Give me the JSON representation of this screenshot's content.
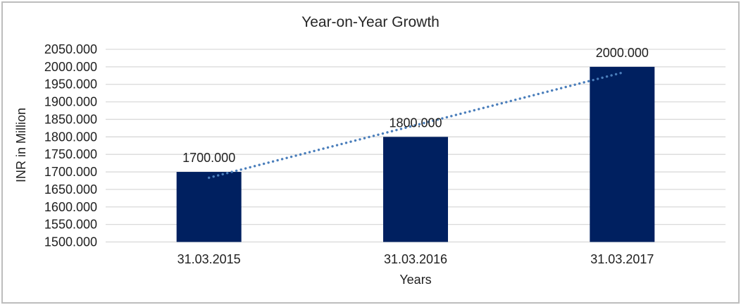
{
  "chart_data": {
    "type": "bar",
    "title": "Year-on-Year Growth",
    "xlabel": "Years",
    "ylabel": "INR in Million",
    "categories": [
      "31.03.2015",
      "31.03.2016",
      "31.03.2017"
    ],
    "values": [
      1700,
      1800,
      2000
    ],
    "data_labels": [
      "1700.000",
      "1800.000",
      "2000.000"
    ],
    "y_ticks": [
      {
        "value": 1500,
        "label": "1500.000"
      },
      {
        "value": 1550,
        "label": "1550.000"
      },
      {
        "value": 1600,
        "label": "1600.000"
      },
      {
        "value": 1650,
        "label": "1650.000"
      },
      {
        "value": 1700,
        "label": "1700.000"
      },
      {
        "value": 1750,
        "label": "1750.000"
      },
      {
        "value": 1800,
        "label": "1800.000"
      },
      {
        "value": 1850,
        "label": "1850.000"
      },
      {
        "value": 1900,
        "label": "1900.000"
      },
      {
        "value": 1950,
        "label": "1950.000"
      },
      {
        "value": 2000,
        "label": "2000.000"
      },
      {
        "value": 2050,
        "label": "2050.000"
      }
    ],
    "ylim": [
      1500,
      2050
    ],
    "grid": true,
    "legend": "none",
    "trendline": {
      "type": "linear",
      "style": "dotted"
    },
    "colors": {
      "bar": "#002060",
      "trendline": "#4a7ebb",
      "gridline": "#d9d9d9",
      "text": "#1f1f1f",
      "border": "#bdbdbd",
      "background": "#ffffff"
    }
  }
}
